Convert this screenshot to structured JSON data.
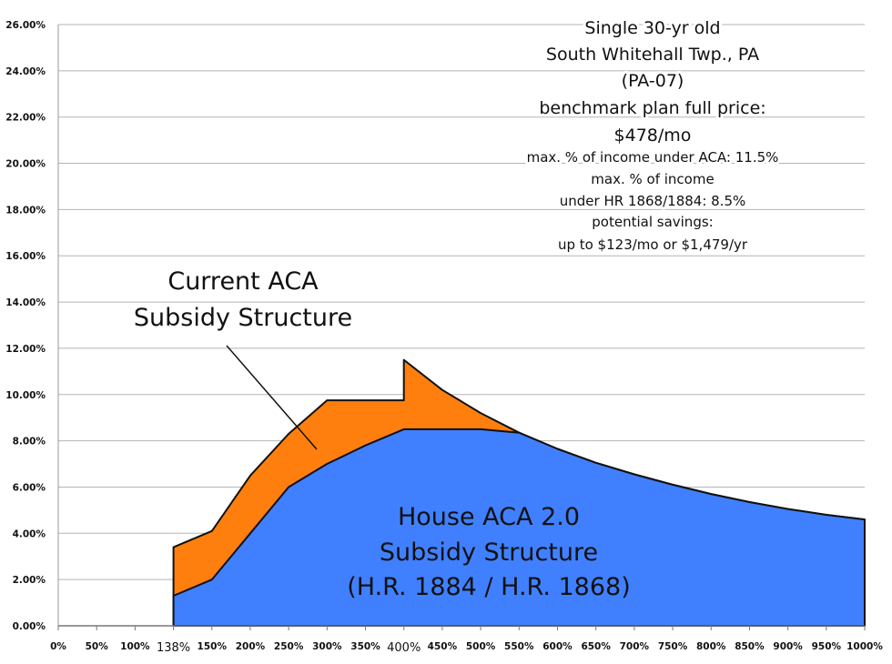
{
  "chart_data": {
    "type": "area",
    "categories": [
      "0%",
      "50%",
      "100%",
      "138%",
      "150%",
      "200%",
      "250%",
      "300%",
      "350%",
      "400%",
      "450%",
      "500%",
      "550%",
      "600%",
      "650%",
      "700%",
      "750%",
      "800%",
      "850%",
      "900%",
      "950%",
      "1000%"
    ],
    "emphasized_categories": [
      "138%",
      "400%"
    ],
    "ylim": [
      0,
      26
    ],
    "yticks": [
      "0.00%",
      "2.00%",
      "4.00%",
      "6.00%",
      "8.00%",
      "10.00%",
      "12.00%",
      "14.00%",
      "16.00%",
      "18.00%",
      "20.00%",
      "22.00%",
      "24.00%",
      "26.00%"
    ],
    "ytick_values": [
      0,
      2,
      4,
      6,
      8,
      10,
      12,
      14,
      16,
      18,
      20,
      22,
      24,
      26
    ],
    "grid": true,
    "series": [
      {
        "name": "Current ACA Subsidy Structure",
        "color": "#ff7f0e",
        "points": [
          [
            "138%",
            0
          ],
          [
            "138%",
            3.4
          ],
          [
            "150%",
            4.1
          ],
          [
            "200%",
            6.5
          ],
          [
            "250%",
            8.3
          ],
          [
            "300%",
            9.75
          ],
          [
            "350%",
            9.75
          ],
          [
            "400%",
            9.75
          ],
          [
            "400%",
            11.5
          ],
          [
            "450%",
            10.2
          ],
          [
            "500%",
            9.2
          ],
          [
            "550%",
            8.35
          ],
          [
            "600%",
            7.65
          ],
          [
            "650%",
            7.05
          ],
          [
            "700%",
            6.55
          ],
          [
            "750%",
            6.1
          ],
          [
            "800%",
            5.7
          ],
          [
            "850%",
            5.35
          ],
          [
            "900%",
            5.05
          ],
          [
            "950%",
            4.8
          ],
          [
            "1000%",
            4.6
          ],
          [
            "1000%",
            0
          ]
        ]
      },
      {
        "name": "House ACA 2.0 Subsidy Structure (H.R. 1884 / H.R. 1868)",
        "color": "#4080ff",
        "points": [
          [
            "138%",
            0
          ],
          [
            "138%",
            1.3
          ],
          [
            "150%",
            2.0
          ],
          [
            "200%",
            4.0
          ],
          [
            "250%",
            6.0
          ],
          [
            "300%",
            7.0
          ],
          [
            "350%",
            7.8
          ],
          [
            "400%",
            8.5
          ],
          [
            "450%",
            8.5
          ],
          [
            "500%",
            8.5
          ],
          [
            "550%",
            8.35
          ],
          [
            "600%",
            7.65
          ],
          [
            "650%",
            7.05
          ],
          [
            "700%",
            6.55
          ],
          [
            "750%",
            6.1
          ],
          [
            "800%",
            5.7
          ],
          [
            "850%",
            5.35
          ],
          [
            "900%",
            5.05
          ],
          [
            "950%",
            4.8
          ],
          [
            "1000%",
            4.6
          ],
          [
            "1000%",
            0
          ]
        ]
      }
    ],
    "annotations": {
      "aca_label": [
        "Current ACA",
        "Subsidy Structure"
      ],
      "house_label": [
        "House ACA 2.0",
        "Subsidy Structure",
        "(H.R. 1884 / H.R. 1868)"
      ],
      "info_large": [
        "Single 30-yr old",
        "South Whitehall Twp., PA",
        "(PA-07)",
        "benchmark plan full price:",
        "$478/mo"
      ],
      "info_small": [
        "max. % of income under ACA: 11.5%",
        "max. % of income",
        "under HR 1868/1884: 8.5%",
        "potential savings:",
        "up to $123/mo or $1,479/yr"
      ]
    }
  }
}
